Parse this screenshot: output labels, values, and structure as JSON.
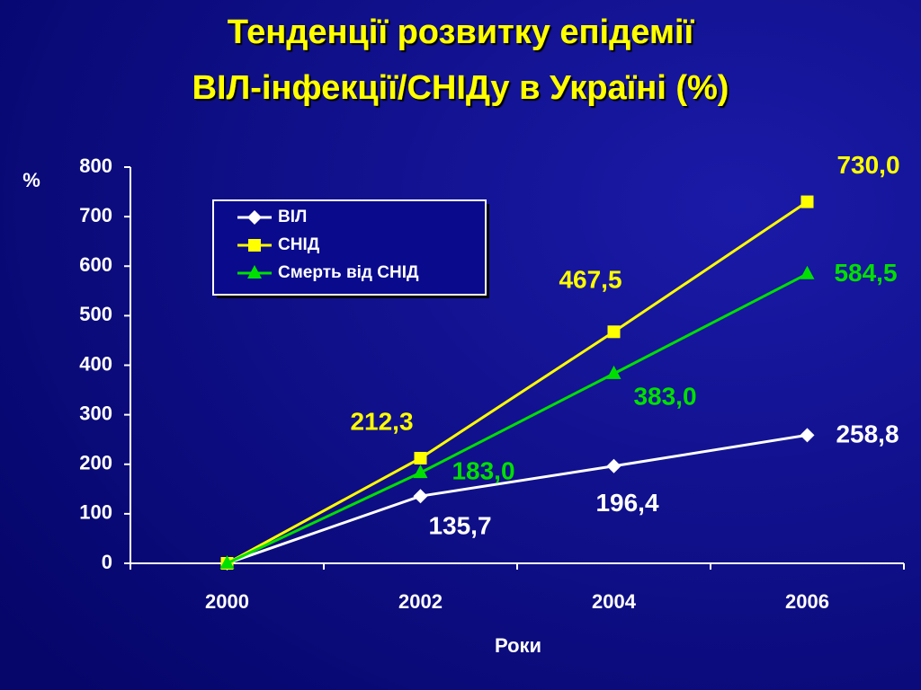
{
  "chart_data": {
    "type": "line",
    "title": [
      "Тенденції розвитку епідемії",
      "ВІЛ-інфекції/СНІДу в Україні (%)"
    ],
    "y_label": "%",
    "x_label": "Роки",
    "categories": [
      "2000",
      "2002",
      "2004",
      "2006"
    ],
    "series": [
      {
        "name": "ВІЛ",
        "color": "#ffffff",
        "marker": "diamond",
        "values": [
          0,
          135.7,
          196.4,
          258.8
        ],
        "value_labels": [
          null,
          "135,7",
          "196,4",
          "258,8"
        ]
      },
      {
        "name": "СНІД",
        "color": "#ffff00",
        "marker": "square",
        "values": [
          0,
          212.3,
          467.5,
          730.0
        ],
        "value_labels": [
          null,
          "212,3",
          "467,5",
          "730,0"
        ]
      },
      {
        "name": "Смерть від СНІД",
        "color": "#00e000",
        "marker": "triangle",
        "values": [
          0,
          183.0,
          383.0,
          584.5
        ],
        "value_labels": [
          null,
          "183,0",
          "383,0",
          "584,5"
        ]
      }
    ],
    "ylim": [
      0,
      800
    ],
    "yticks": [
      0,
      100,
      200,
      300,
      400,
      500,
      600,
      700,
      800
    ],
    "grid": false
  }
}
